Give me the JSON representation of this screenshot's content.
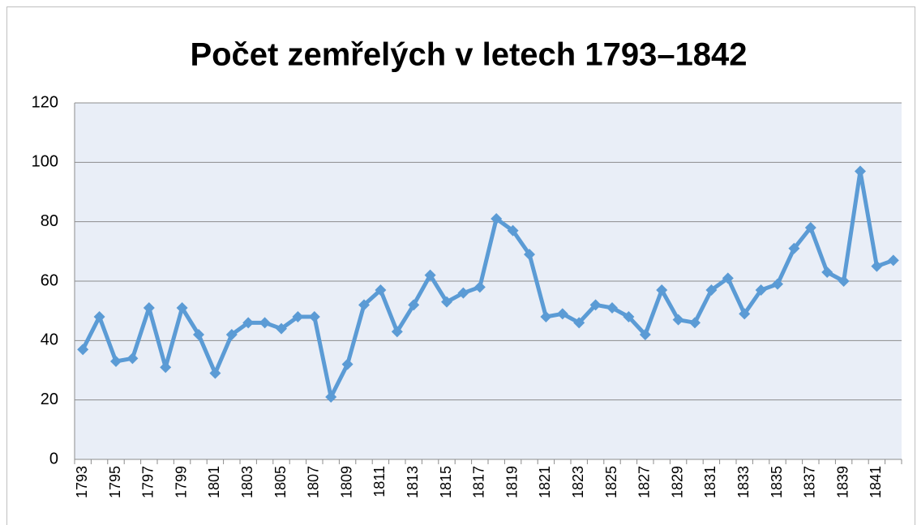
{
  "chart_data": {
    "type": "line",
    "title": "Počet zemřelých v letech 1793–1842",
    "categories": [
      "1793",
      null,
      "1795",
      null,
      "1797",
      null,
      "1799",
      null,
      "1801",
      null,
      "1803",
      null,
      "1805",
      null,
      "1807",
      null,
      "1809",
      null,
      "1811",
      null,
      "1813",
      null,
      "1815",
      null,
      "1817",
      null,
      "1819",
      null,
      "1821",
      null,
      "1823",
      null,
      "1825",
      null,
      "1827",
      null,
      "1829",
      null,
      "1831",
      null,
      "1833",
      null,
      "1835",
      null,
      "1837",
      null,
      "1839",
      null,
      "1841",
      null
    ],
    "values": [
      37,
      48,
      33,
      34,
      51,
      31,
      51,
      42,
      29,
      42,
      46,
      46,
      44,
      48,
      48,
      21,
      32,
      52,
      57,
      43,
      52,
      62,
      53,
      56,
      58,
      81,
      77,
      69,
      48,
      49,
      46,
      52,
      51,
      48,
      42,
      57,
      47,
      46,
      57,
      61,
      49,
      57,
      59,
      71,
      78,
      63,
      60,
      97,
      65,
      67
    ],
    "color": "#5b9bd5",
    "ylim": [
      0,
      120
    ],
    "yticks": [
      0,
      20,
      40,
      60,
      80,
      100,
      120
    ],
    "grid": true
  }
}
